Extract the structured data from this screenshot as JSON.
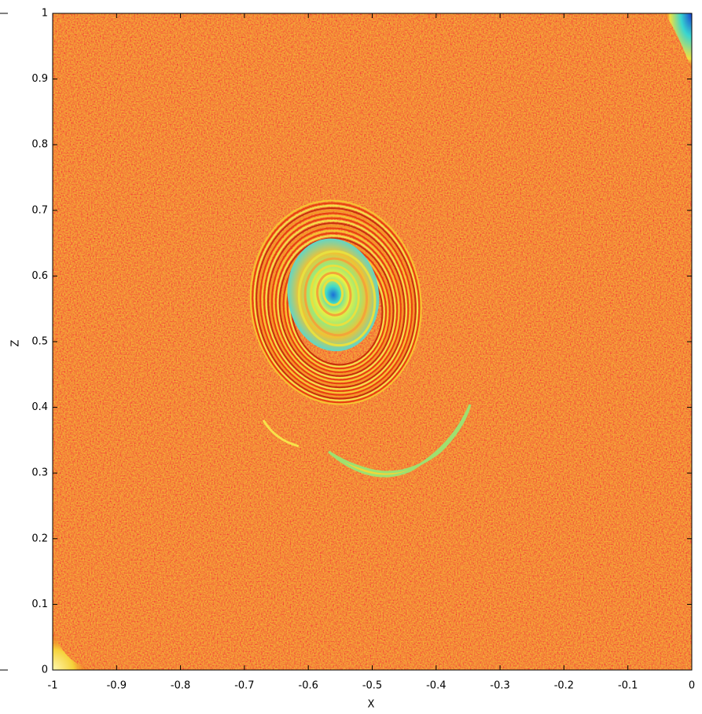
{
  "chart_data": {
    "type": "image",
    "xlabel": "X",
    "ylabel": "Z",
    "xlim": [
      -1,
      0
    ],
    "ylim": [
      0,
      1
    ],
    "xticks": [
      -1,
      -0.9,
      -0.8,
      -0.7,
      -0.6,
      -0.5,
      -0.4,
      -0.3,
      -0.2,
      -0.1,
      0
    ],
    "yticks": [
      0,
      0.1,
      0.2,
      0.3,
      0.4,
      0.5,
      0.6,
      0.7,
      0.8,
      0.9,
      1
    ]
  }
}
